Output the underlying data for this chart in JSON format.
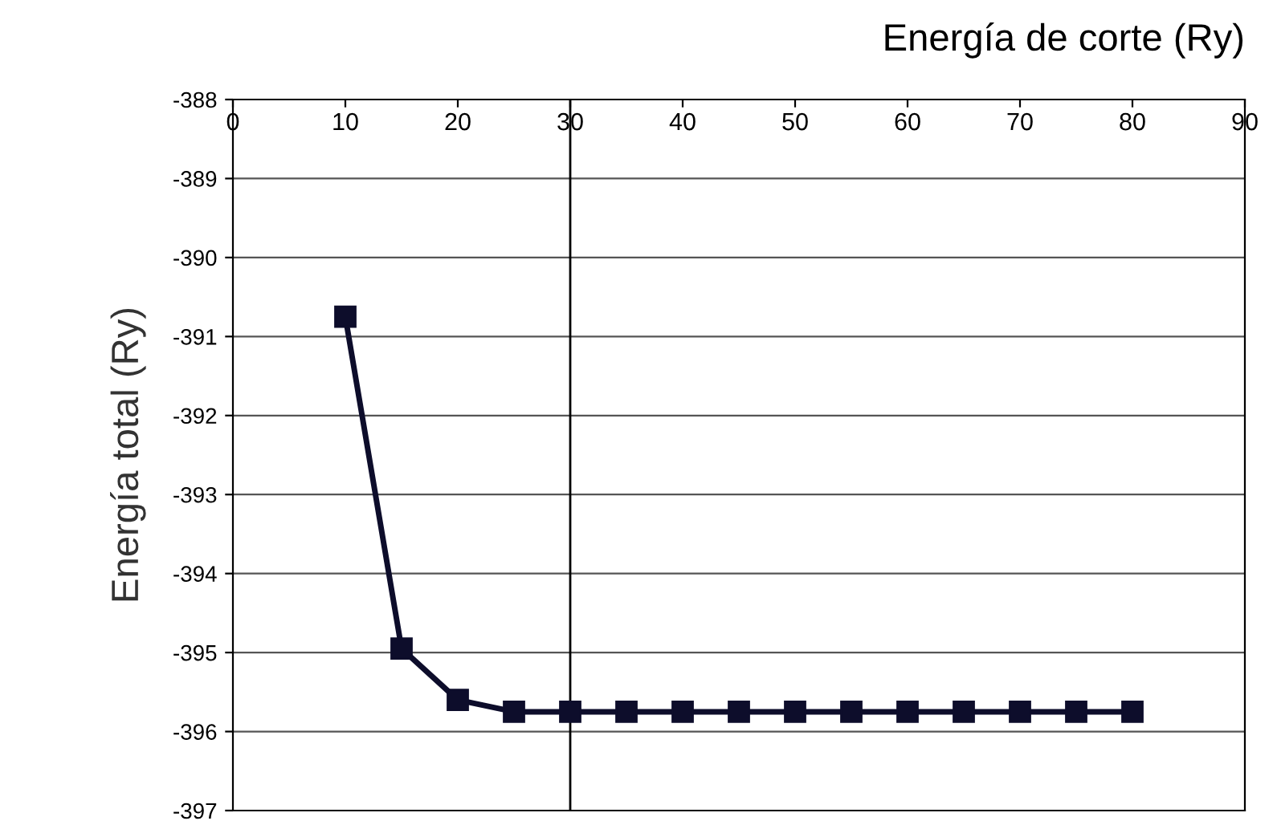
{
  "chart_data": {
    "type": "line",
    "xlabel": "Energía de corte (Ry)",
    "ylabel": "Energía total (Ry)",
    "x": [
      10,
      15,
      20,
      25,
      30,
      35,
      40,
      45,
      50,
      55,
      60,
      65,
      70,
      75,
      80
    ],
    "series": [
      {
        "color": "#0d0d2b",
        "values": [
          -390.75,
          -394.95,
          -395.6,
          -395.75,
          -395.75,
          -395.75,
          -395.75,
          -395.75,
          -395.75,
          -395.75,
          -395.75,
          -395.75,
          -395.75,
          -395.75,
          -395.75
        ]
      }
    ],
    "xlim": [
      0,
      90
    ],
    "xticks": [
      0,
      10,
      20,
      30,
      40,
      50,
      60,
      70,
      80,
      90
    ],
    "ylim": [
      -397,
      -388
    ],
    "yticks": [
      -397,
      -396,
      -395,
      -394,
      -393,
      -392,
      -391,
      -390,
      -389,
      -388
    ],
    "grid": "y",
    "marker": "square",
    "line_style": "solid",
    "ref_lines": [
      {
        "axis": "x",
        "value": 30,
        "color": "#000000"
      }
    ]
  }
}
